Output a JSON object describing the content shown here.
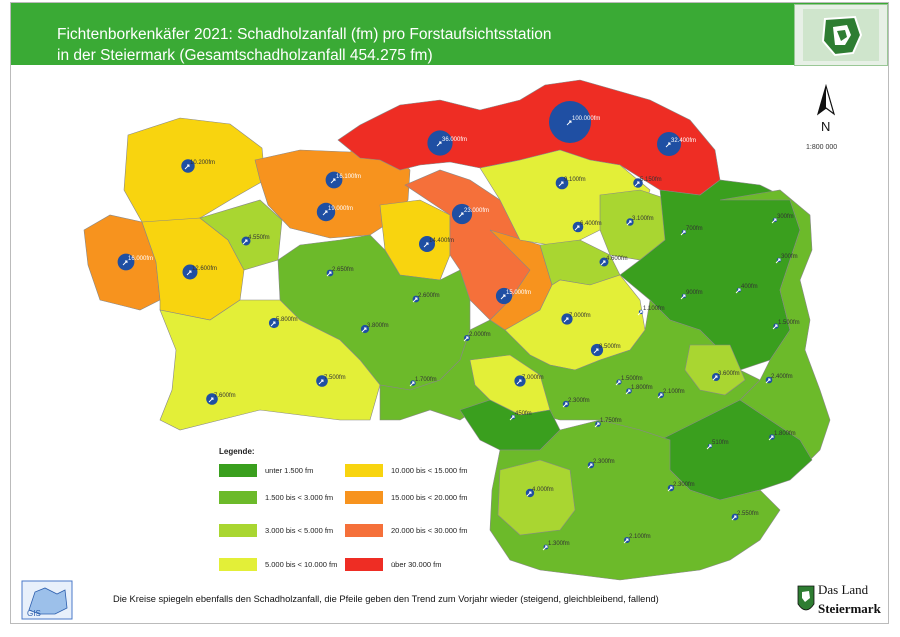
{
  "header": {
    "title_line1": "Fichtenborkenkäfer 2021: Schadholzanfall (fm) pro Forstaufsichtsstation",
    "title_line2": "in der Steiermark (Gesamtschadholzanfall 454.275 fm)",
    "background_color": "#3aaa35"
  },
  "north_arrow": {
    "label": "N",
    "scale": "1:800 000"
  },
  "legend": {
    "title": "Legende:",
    "classes": [
      {
        "label": "unter  1.500 fm",
        "color": "#3a9f1e"
      },
      {
        "label": "1.500 bis  <  3.000 fm",
        "color": "#6cba2a"
      },
      {
        "label": "3.000 bis  <  5.000 fm",
        "color": "#a9d631"
      },
      {
        "label": "5.000 bis  <  10.000 fm",
        "color": "#e3ef38"
      },
      {
        "label": "10.000 bis  <  15.000 fm",
        "color": "#f8d40f"
      },
      {
        "label": "15.000 bis  <  20.000 fm",
        "color": "#f7931e"
      },
      {
        "label": "20.000 bis  <  30.000 fm",
        "color": "#f5703a"
      },
      {
        "label": "über  30.000 fm",
        "color": "#ee2d24"
      }
    ]
  },
  "stations": [
    {
      "label": "36.000fm",
      "value": 36000,
      "trend": "steigend"
    },
    {
      "label": "100.000fm",
      "value": 100000,
      "trend": "steigend"
    },
    {
      "label": "32.400fm",
      "value": 32400,
      "trend": "steigend"
    },
    {
      "label": "10.200fm",
      "value": 10200,
      "trend": "steigend"
    },
    {
      "label": "16.100fm",
      "value": 16100,
      "trend": "steigend"
    },
    {
      "label": "19.000fm",
      "value": 19000,
      "trend": "steigend"
    },
    {
      "label": "9.100fm",
      "value": 9100,
      "trend": "steigend"
    },
    {
      "label": "5.150fm",
      "value": 5150,
      "trend": "steigend"
    },
    {
      "label": "23.000fm",
      "value": 23000,
      "trend": "steigend"
    },
    {
      "label": "6.400fm",
      "value": 6400,
      "trend": "steigend"
    },
    {
      "label": "3.100fm",
      "value": 3100,
      "trend": "steigend"
    },
    {
      "label": "4.550fm",
      "value": 4550,
      "trend": "steigend"
    },
    {
      "label": "14.400fm",
      "value": 14400,
      "trend": "steigend"
    },
    {
      "label": "16.000fm",
      "value": 16000,
      "trend": "steigend"
    },
    {
      "label": "12.600fm",
      "value": 12600,
      "trend": "steigend"
    },
    {
      "label": "2.650fm",
      "value": 2650,
      "trend": "steigend"
    },
    {
      "label": "4.600fm",
      "value": 4600,
      "trend": "steigend"
    },
    {
      "label": "15.000fm",
      "value": 15000,
      "trend": "steigend"
    },
    {
      "label": "2.600fm",
      "value": 2600,
      "trend": "steigend"
    },
    {
      "label": "5.800fm",
      "value": 5800,
      "trend": "steigend"
    },
    {
      "label": "3.800fm",
      "value": 3800,
      "trend": "steigend"
    },
    {
      "label": "2.000fm",
      "value": 2000,
      "trend": "steigend"
    },
    {
      "label": "7.000fm",
      "value": 7000,
      "trend": "steigend"
    },
    {
      "label": "8.500fm",
      "value": 8500,
      "trend": "steigend"
    },
    {
      "label": "1.700fm",
      "value": 1700,
      "trend": "steigend"
    },
    {
      "label": "7.500fm",
      "value": 7500,
      "trend": "steigend"
    },
    {
      "label": "7.600fm",
      "value": 7600,
      "trend": "steigend"
    },
    {
      "label": "7.000fm",
      "value": 7000,
      "trend": "steigend"
    },
    {
      "label": "450fm",
      "value": 450,
      "trend": "steigend"
    },
    {
      "label": "2.300fm",
      "value": 2300,
      "trend": "steigend"
    },
    {
      "label": "1.750fm",
      "value": 1750,
      "trend": "steigend"
    },
    {
      "label": "1.800fm",
      "value": 1800,
      "trend": "steigend"
    },
    {
      "label": "2.100fm",
      "value": 2100,
      "trend": "steigend"
    },
    {
      "label": "3.600fm",
      "value": 3600,
      "trend": "steigend"
    },
    {
      "label": "2.400fm",
      "value": 2400,
      "trend": "steigend"
    },
    {
      "label": "1.500fm",
      "value": 1500,
      "trend": "steigend"
    },
    {
      "label": "1.100fm",
      "value": 1100,
      "trend": "steigend"
    },
    {
      "label": "900fm",
      "value": 900,
      "trend": "steigend"
    },
    {
      "label": "400fm",
      "value": 400,
      "trend": "steigend"
    },
    {
      "label": "300fm",
      "value": 300,
      "trend": "steigend"
    },
    {
      "label": "700fm",
      "value": 700,
      "trend": "steigend"
    },
    {
      "label": "300fm",
      "value": 300,
      "trend": "steigend"
    },
    {
      "label": "2.300fm",
      "value": 2300,
      "trend": "steigend"
    },
    {
      "label": "2.300fm",
      "value": 2300,
      "trend": "steigend"
    },
    {
      "label": "4.000fm",
      "value": 4000,
      "trend": "steigend"
    },
    {
      "label": "1.300fm",
      "value": 1300,
      "trend": "steigend"
    },
    {
      "label": "2.100fm",
      "value": 2100,
      "trend": "steigend"
    },
    {
      "label": "2.550fm",
      "value": 2550,
      "trend": "steigend"
    },
    {
      "label": "1.500fm",
      "value": 1500,
      "trend": "steigend"
    },
    {
      "label": "510fm",
      "value": 510,
      "trend": "steigend"
    },
    {
      "label": "1.800fm",
      "value": 1800,
      "trend": "steigend"
    }
  ],
  "footnote": "Die Kreise spiegeln ebenfalls den Schadholzanfall, die Pfeile geben den Trend zum Vorjahr wieder (steigend, gleichbleibend, fallend)",
  "logos": {
    "gis": "GIS",
    "land_line1": "Das Land",
    "land_line2": "Steiermark"
  }
}
